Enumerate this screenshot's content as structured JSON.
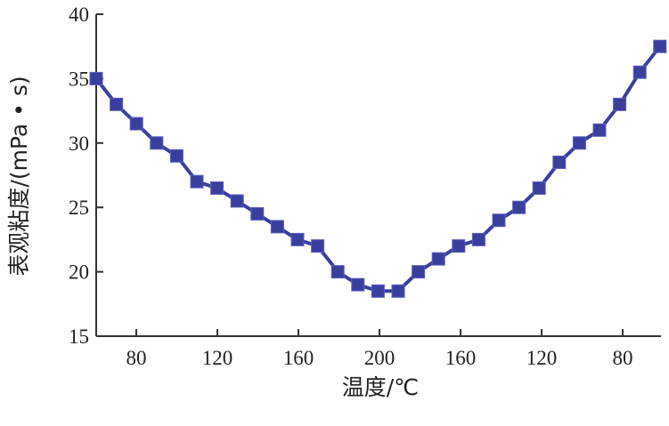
{
  "chart_data": {
    "type": "line",
    "xlabel": "温度/℃",
    "ylabel": "表观粘度/(mPa • s)",
    "ylim": [
      15,
      40
    ],
    "yticks": [
      15,
      20,
      25,
      30,
      35,
      40
    ],
    "xticks": [
      {
        "label": "80"
      },
      {
        "label": "120"
      },
      {
        "label": "160"
      },
      {
        "label": "200"
      },
      {
        "label": "160"
      },
      {
        "label": "120"
      },
      {
        "label": "80"
      }
    ],
    "series_color": "#3a3f9e",
    "grid": false,
    "legend": "none",
    "series": [
      {
        "values": [
          35.0,
          33.0,
          31.5,
          30.0,
          29.0,
          27.0,
          26.5,
          25.5,
          24.5,
          23.5,
          22.5,
          22.0,
          20.0,
          19.0,
          18.5,
          18.5,
          20.0,
          21.0,
          22.0,
          22.5,
          24.0,
          25.0,
          26.5,
          28.5,
          30.0,
          31.0,
          33.0,
          35.5,
          37.5
        ]
      }
    ]
  }
}
